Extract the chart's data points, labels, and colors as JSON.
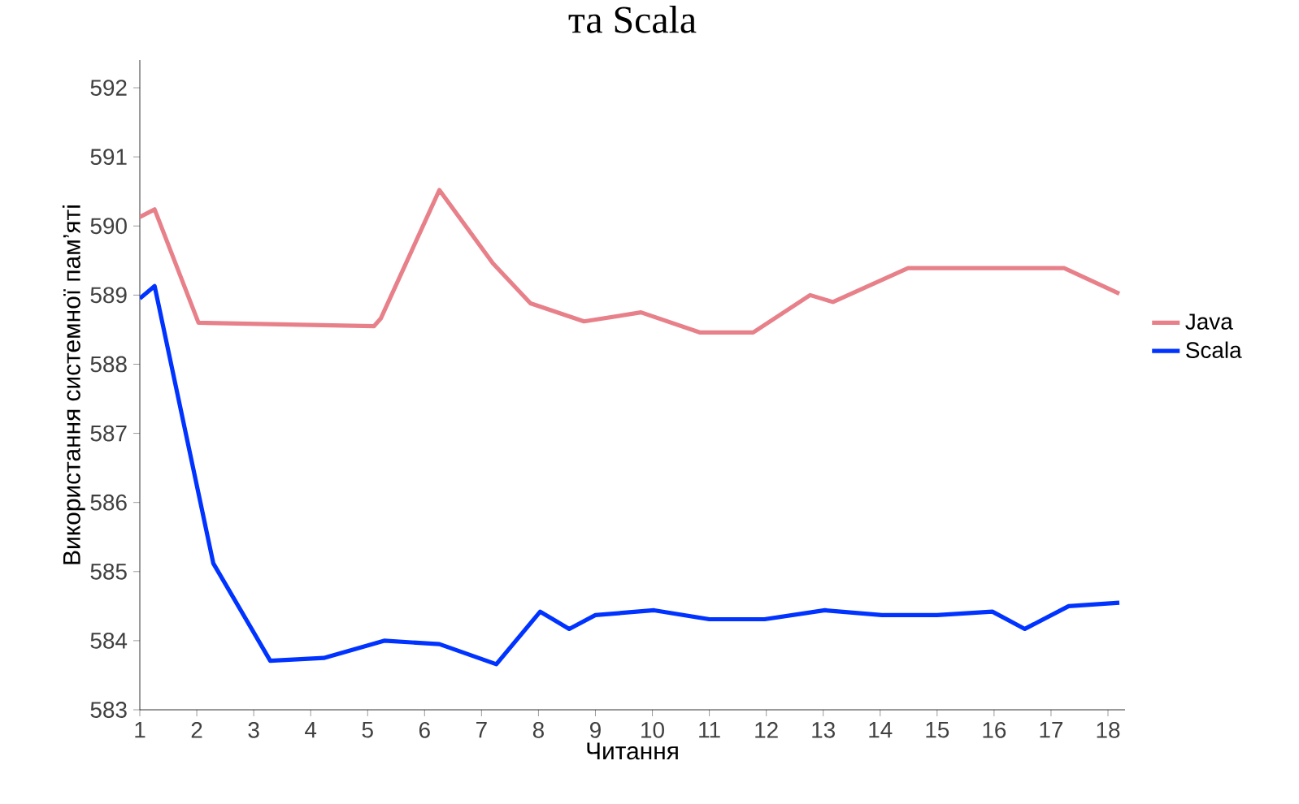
{
  "chart_data": {
    "type": "line",
    "title": "та Scala",
    "xlabel": "Читання",
    "ylabel": "Використання системної пам’яті",
    "xlim": [
      1,
      18.3
    ],
    "ylim": [
      583,
      592.4
    ],
    "xticks": [
      1,
      2,
      3,
      4,
      5,
      6,
      7,
      8,
      9,
      10,
      11,
      12,
      13,
      14,
      15,
      16,
      17,
      18
    ],
    "yticks": [
      583,
      584,
      585,
      586,
      587,
      588,
      589,
      590,
      591,
      592
    ],
    "grid": false,
    "legend": "right",
    "marker": "none",
    "line_style": "solid",
    "series": [
      {
        "name": "Java",
        "color": "#e8808a",
        "x": [
          1,
          1.26,
          2.03,
          5.11,
          5.23,
          6.26,
          7.2,
          7.86,
          8.8,
          9.8,
          10.83,
          11.77,
          12.77,
          13.17,
          14.49,
          17.23,
          18.2
        ],
        "values": [
          590.13,
          590.24,
          588.6,
          588.55,
          588.66,
          590.52,
          589.46,
          588.88,
          588.62,
          588.75,
          588.46,
          588.46,
          589.0,
          588.9,
          589.39,
          589.39,
          589.02
        ]
      },
      {
        "name": "Scala",
        "color": "#0033ff",
        "x": [
          1,
          1.26,
          2.29,
          3.29,
          4.23,
          5.29,
          6.26,
          7.26,
          8.03,
          8.54,
          9.0,
          10.03,
          11.0,
          11.97,
          13.03,
          14.03,
          15.0,
          15.97,
          16.54,
          17.31,
          18.2
        ],
        "values": [
          588.95,
          589.13,
          585.12,
          583.71,
          583.75,
          584.0,
          583.95,
          583.66,
          584.42,
          584.17,
          584.37,
          584.44,
          584.31,
          584.31,
          584.44,
          584.37,
          584.37,
          584.42,
          584.17,
          584.5,
          584.55
        ]
      }
    ]
  }
}
